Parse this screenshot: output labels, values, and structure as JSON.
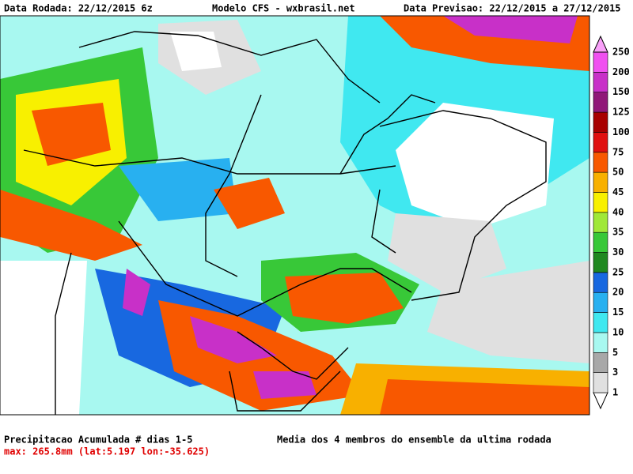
{
  "header": {
    "left": "Data Rodada: 22/12/2015 6z",
    "center": "Modelo CFS - wxbrasil.net",
    "right": "Data Previsao: 22/12/2015 a 27/12/2015"
  },
  "colorbar": {
    "levels": [
      1,
      3,
      5,
      10,
      15,
      20,
      25,
      30,
      35,
      40,
      45,
      50,
      75,
      100,
      125,
      150,
      200,
      250
    ],
    "colors": [
      "#ffffff",
      "#e0e0e0",
      "#a8a8a8",
      "#a8f8f0",
      "#40e8f0",
      "#28b0f0",
      "#1868e0",
      "#208820",
      "#38c838",
      "#a0e838",
      "#f8f000",
      "#f8b000",
      "#f85800",
      "#e01010",
      "#a80000",
      "#901878",
      "#c830c8",
      "#f050f0",
      "#f8a0f8"
    ]
  },
  "footer": {
    "title": "Precipitacao Acumulada # dias 1-5",
    "max": "max: 265.8mm (lat:5.197 lon:-35.625)",
    "note": "Media dos 4 membros do ensemble da ultima rodada"
  }
}
